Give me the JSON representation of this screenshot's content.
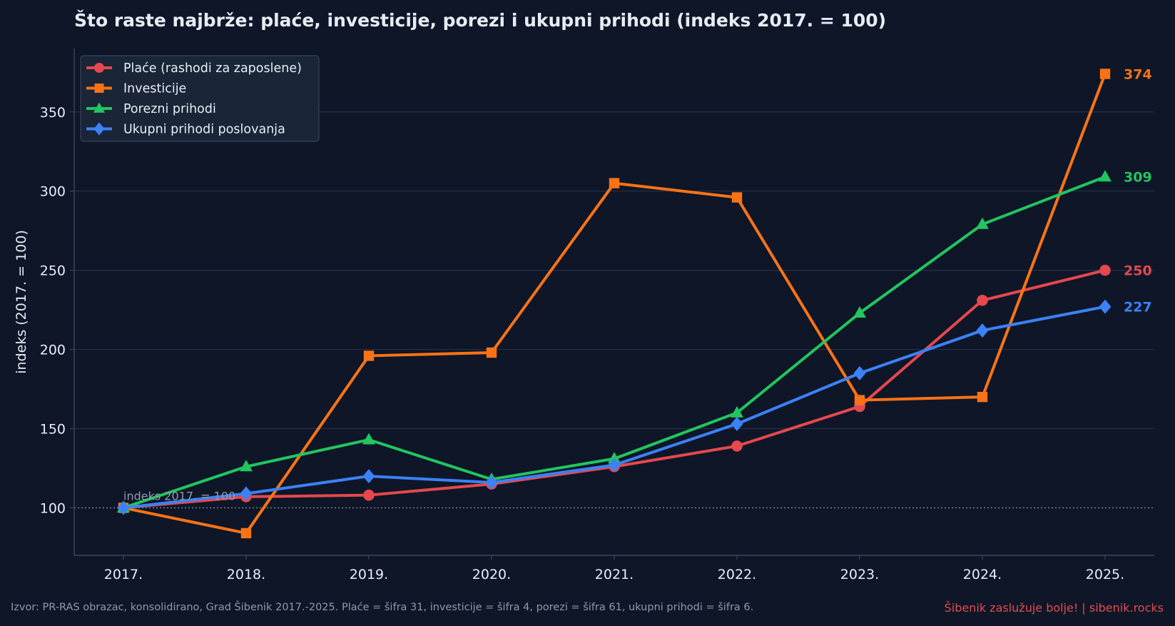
{
  "chart_data": {
    "type": "line",
    "title": "Što raste najbrže: plaće, investicije, porezi i ukupni prihodi (indeks 2017. = 100)",
    "xlabel": "",
    "ylabel": "indeks (2017. = 100)",
    "x": [
      "2017.",
      "2018.",
      "2019.",
      "2020.",
      "2021.",
      "2022.",
      "2023.",
      "2024.",
      "2025."
    ],
    "ylim": [
      70,
      390
    ],
    "yticks": [
      100,
      150,
      200,
      250,
      300,
      350
    ],
    "grid": true,
    "legend_position": "top-left",
    "baseline": {
      "value": 100,
      "label": "indeks 2017. = 100"
    },
    "series": [
      {
        "name": "Plaće (rashodi za zaposlene)",
        "color": "#e5484d",
        "marker": "circle",
        "values": [
          100,
          107,
          108,
          115,
          126,
          139,
          164,
          231,
          250
        ],
        "end_label": "250"
      },
      {
        "name": "Investicije",
        "color": "#f97316",
        "marker": "square",
        "values": [
          100,
          84,
          196,
          198,
          305,
          296,
          168,
          170,
          374
        ],
        "end_label": "374"
      },
      {
        "name": "Porezni prihodi",
        "color": "#22c55e",
        "marker": "triangle",
        "values": [
          100,
          126,
          143,
          118,
          131,
          160,
          223,
          279,
          309
        ],
        "end_label": "309"
      },
      {
        "name": "Ukupni prihodi poslovanja",
        "color": "#3b82f6",
        "marker": "diamond",
        "values": [
          100,
          109,
          120,
          116,
          127,
          153,
          185,
          212,
          227
        ],
        "end_label": "227"
      }
    ]
  },
  "footer": {
    "source": "Izvor: PR-RAS obrazac, konsolidirano, Grad Šibenik 2017.-2025. Plaće = šifra 31, investicije = šifra 4, porezi = šifra 61, ukupni prihodi = šifra 6.",
    "brand": "Šibenik zaslužuje bolje!  |  sibenik.rocks"
  }
}
